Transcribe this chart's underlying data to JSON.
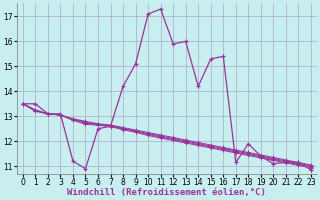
{
  "background_color": "#c8eef0",
  "grid_color": "#aaaacc",
  "line_color": "#993399",
  "xlabel": "Windchill (Refroidissement éolien,°C)",
  "xlabel_fontsize": 6.5,
  "ylim": [
    10.7,
    17.55
  ],
  "xlim": [
    -0.5,
    23.5
  ],
  "yticks": [
    11,
    12,
    13,
    14,
    15,
    16,
    17
  ],
  "xticks": [
    0,
    1,
    2,
    3,
    4,
    5,
    6,
    7,
    8,
    9,
    10,
    11,
    12,
    13,
    14,
    15,
    16,
    17,
    18,
    19,
    20,
    21,
    22,
    23
  ],
  "series_main": [
    13.5,
    13.5,
    13.1,
    13.1,
    11.2,
    10.9,
    12.5,
    12.6,
    14.2,
    15.1,
    17.1,
    17.3,
    15.9,
    16.0,
    14.2,
    15.3,
    15.4,
    11.15,
    11.9,
    11.4,
    11.1,
    11.15,
    11.15,
    10.85
  ],
  "series_flat": [
    [
      13.5,
      13.2,
      13.1,
      13.05,
      12.9,
      12.8,
      12.7,
      12.65,
      12.55,
      12.45,
      12.35,
      12.25,
      12.15,
      12.05,
      11.95,
      11.85,
      11.75,
      11.65,
      11.55,
      11.45,
      11.35,
      11.25,
      11.15,
      11.05
    ],
    [
      13.5,
      13.22,
      13.1,
      13.05,
      12.88,
      12.76,
      12.68,
      12.63,
      12.52,
      12.42,
      12.31,
      12.21,
      12.11,
      12.01,
      11.91,
      11.81,
      11.71,
      11.61,
      11.51,
      11.41,
      11.31,
      11.21,
      11.11,
      11.02
    ],
    [
      13.5,
      13.24,
      13.1,
      13.05,
      12.86,
      12.72,
      12.66,
      12.61,
      12.49,
      12.39,
      12.27,
      12.17,
      12.07,
      11.97,
      11.87,
      11.77,
      11.67,
      11.57,
      11.47,
      11.37,
      11.27,
      11.17,
      11.07,
      10.98
    ],
    [
      13.5,
      13.26,
      13.1,
      13.05,
      12.84,
      12.68,
      12.64,
      12.59,
      12.46,
      12.36,
      12.23,
      12.13,
      12.03,
      11.93,
      11.83,
      11.73,
      11.63,
      11.53,
      11.43,
      11.33,
      11.23,
      11.13,
      11.03,
      10.94
    ]
  ],
  "tick_fontsize": 5.5,
  "marker": "+"
}
